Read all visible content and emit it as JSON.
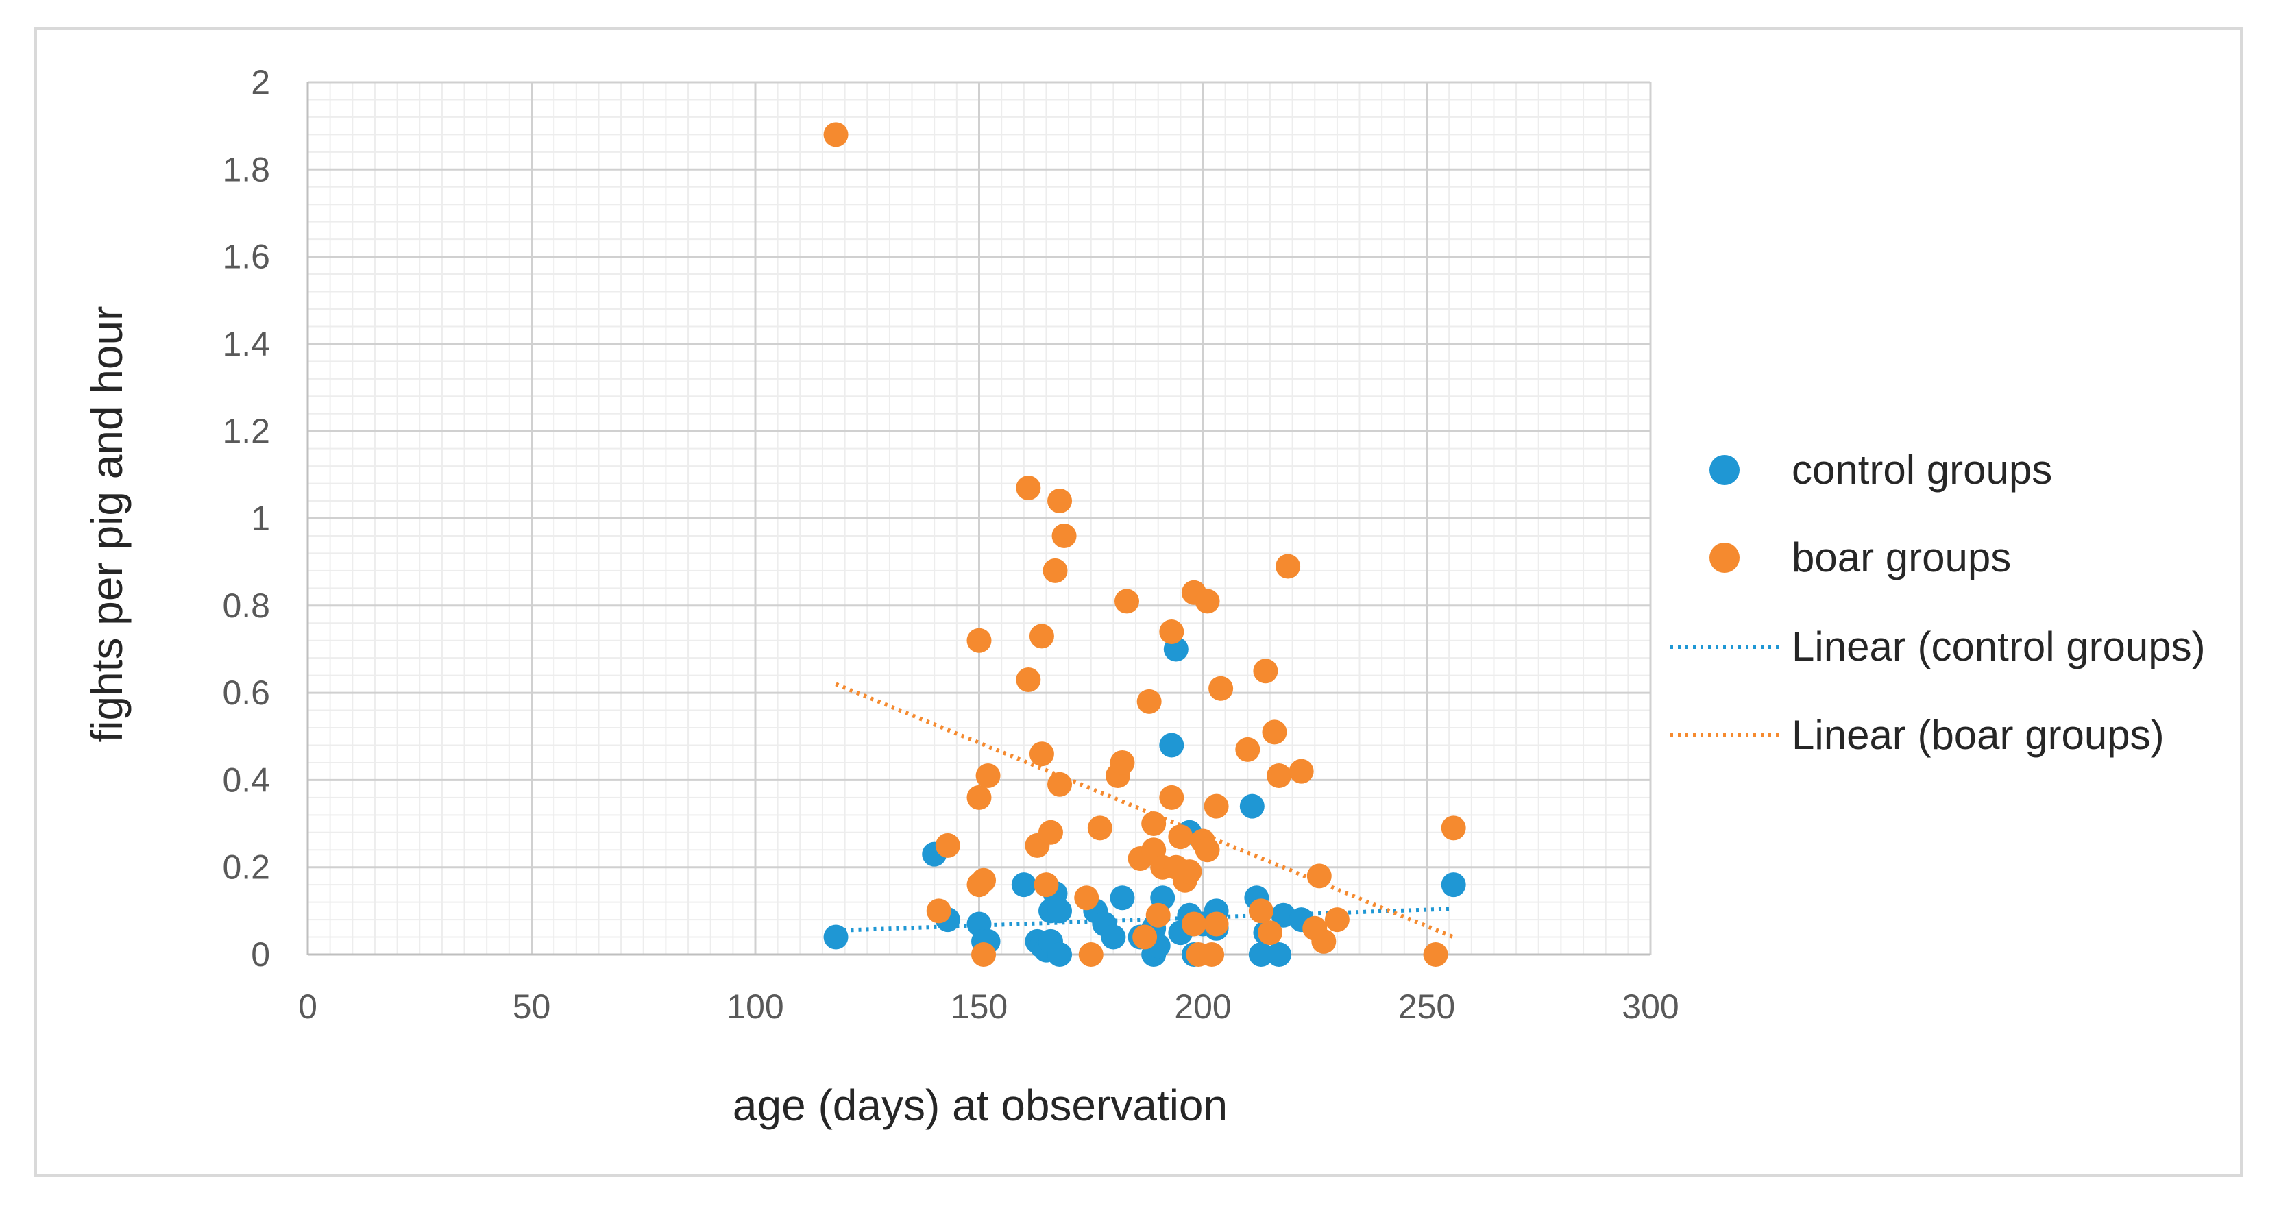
{
  "chart_data": {
    "type": "scatter",
    "title": "",
    "xlabel": "age (days) at observation",
    "ylabel": "fights per pig and hour",
    "xlim": [
      0,
      300
    ],
    "ylim": [
      0,
      2
    ],
    "xticks": [
      "0",
      "50",
      "100",
      "150",
      "200",
      "250",
      "300"
    ],
    "yticks": [
      "0",
      "0.2",
      "0.4",
      "0.6",
      "0.8",
      "1",
      "1.2",
      "1.4",
      "1.6",
      "1.8",
      "2"
    ],
    "xtick_values": [
      0,
      50,
      100,
      150,
      200,
      250,
      300
    ],
    "ytick_values": [
      0,
      0.2,
      0.4,
      0.6,
      0.8,
      1,
      1.2,
      1.4,
      1.6,
      1.8,
      2
    ],
    "grid": true,
    "legend_position": "right",
    "series": [
      {
        "name": "control groups",
        "color": "#1f97d4",
        "points": [
          [
            118,
            0.04
          ],
          [
            140,
            0.23
          ],
          [
            143,
            0.08
          ],
          [
            150,
            0.07
          ],
          [
            151,
            0.03
          ],
          [
            152,
            0.03
          ],
          [
            160,
            0.16
          ],
          [
            163,
            0.03
          ],
          [
            164,
            0.02
          ],
          [
            165,
            0.01
          ],
          [
            166,
            0.1
          ],
          [
            166,
            0.03
          ],
          [
            167,
            0.14
          ],
          [
            168,
            0.1
          ],
          [
            168,
            0.0
          ],
          [
            176,
            0.1
          ],
          [
            178,
            0.07
          ],
          [
            180,
            0.04
          ],
          [
            182,
            0.13
          ],
          [
            186,
            0.04
          ],
          [
            189,
            0.06
          ],
          [
            189,
            0.0
          ],
          [
            190,
            0.02
          ],
          [
            191,
            0.13
          ],
          [
            193,
            0.48
          ],
          [
            194,
            0.7
          ],
          [
            195,
            0.05
          ],
          [
            197,
            0.28
          ],
          [
            197,
            0.09
          ],
          [
            198,
            0.0
          ],
          [
            200,
            0.07
          ],
          [
            203,
            0.1
          ],
          [
            203,
            0.06
          ],
          [
            211,
            0.34
          ],
          [
            212,
            0.13
          ],
          [
            213,
            0.0
          ],
          [
            214,
            0.05
          ],
          [
            217,
            0.0
          ],
          [
            218,
            0.09
          ],
          [
            222,
            0.08
          ],
          [
            256,
            0.16
          ]
        ]
      },
      {
        "name": "boar groups",
        "color": "#f58a2f",
        "points": [
          [
            118,
            1.88
          ],
          [
            141,
            0.1
          ],
          [
            143,
            0.25
          ],
          [
            150,
            0.72
          ],
          [
            150,
            0.36
          ],
          [
            150,
            0.16
          ],
          [
            151,
            0.17
          ],
          [
            151,
            0.0
          ],
          [
            152,
            0.41
          ],
          [
            161,
            1.07
          ],
          [
            161,
            0.63
          ],
          [
            163,
            0.25
          ],
          [
            164,
            0.73
          ],
          [
            164,
            0.46
          ],
          [
            165,
            0.16
          ],
          [
            166,
            0.28
          ],
          [
            167,
            0.88
          ],
          [
            168,
            1.04
          ],
          [
            168,
            0.39
          ],
          [
            169,
            0.96
          ],
          [
            174,
            0.13
          ],
          [
            175,
            0.0
          ],
          [
            177,
            0.29
          ],
          [
            181,
            0.41
          ],
          [
            182,
            0.44
          ],
          [
            183,
            0.81
          ],
          [
            186,
            0.22
          ],
          [
            187,
            0.04
          ],
          [
            188,
            0.58
          ],
          [
            189,
            0.24
          ],
          [
            189,
            0.3
          ],
          [
            190,
            0.09
          ],
          [
            191,
            0.2
          ],
          [
            193,
            0.74
          ],
          [
            193,
            0.36
          ],
          [
            194,
            0.2
          ],
          [
            195,
            0.27
          ],
          [
            196,
            0.17
          ],
          [
            197,
            0.19
          ],
          [
            198,
            0.83
          ],
          [
            198,
            0.07
          ],
          [
            199,
            0.0
          ],
          [
            200,
            0.26
          ],
          [
            201,
            0.24
          ],
          [
            201,
            0.81
          ],
          [
            202,
            0.0
          ],
          [
            203,
            0.34
          ],
          [
            203,
            0.07
          ],
          [
            204,
            0.61
          ],
          [
            210,
            0.47
          ],
          [
            213,
            0.1
          ],
          [
            214,
            0.65
          ],
          [
            215,
            0.05
          ],
          [
            216,
            0.51
          ],
          [
            217,
            0.41
          ],
          [
            219,
            0.89
          ],
          [
            222,
            0.42
          ],
          [
            225,
            0.06
          ],
          [
            226,
            0.18
          ],
          [
            227,
            0.03
          ],
          [
            230,
            0.08
          ],
          [
            252,
            0.0
          ],
          [
            256,
            0.29
          ]
        ]
      }
    ],
    "trendlines": [
      {
        "name": "Linear (control groups)",
        "color": "#1f97d4",
        "x": [
          118,
          256
        ],
        "y": [
          0.055,
          0.105
        ]
      },
      {
        "name": "Linear (boar groups)",
        "color": "#f58a2f",
        "x": [
          118,
          256
        ],
        "y": [
          0.62,
          0.04
        ]
      }
    ]
  }
}
